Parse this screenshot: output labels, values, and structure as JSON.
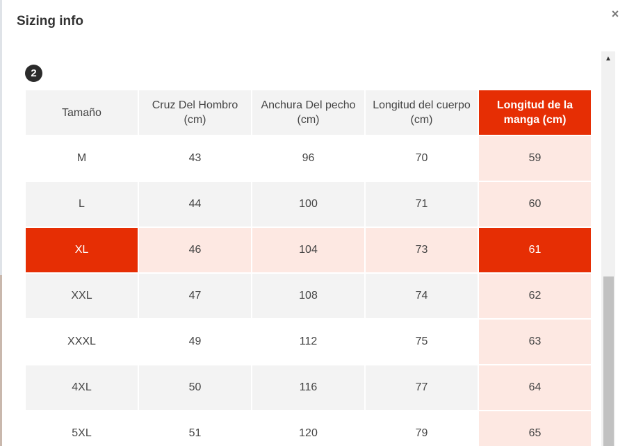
{
  "modal": {
    "title": "Sizing info",
    "close_label": "×",
    "step_number": "2"
  },
  "table": {
    "headers": [
      "Tamaño",
      "Cruz Del Hombro (cm)",
      "Anchura Del pecho (cm)",
      "Longitud del cuerpo (cm)",
      "Longitud de la manga (cm)"
    ],
    "highlighted_column": 4,
    "highlighted_row": 2,
    "rows": [
      [
        "M",
        "43",
        "96",
        "70",
        "59"
      ],
      [
        "L",
        "44",
        "100",
        "71",
        "60"
      ],
      [
        "XL",
        "46",
        "104",
        "73",
        "61"
      ],
      [
        "XXL",
        "47",
        "108",
        "74",
        "62"
      ],
      [
        "XXXL",
        "49",
        "112",
        "75",
        "63"
      ],
      [
        "4XL",
        "50",
        "116",
        "77",
        "64"
      ],
      [
        "5XL",
        "51",
        "120",
        "79",
        "65"
      ]
    ]
  },
  "scrollbar": {
    "up_arrow": "▲"
  },
  "colors": {
    "accent": "#e62e04",
    "highlight_bg": "#fde8e2",
    "header_bg": "#f3f3f3"
  }
}
